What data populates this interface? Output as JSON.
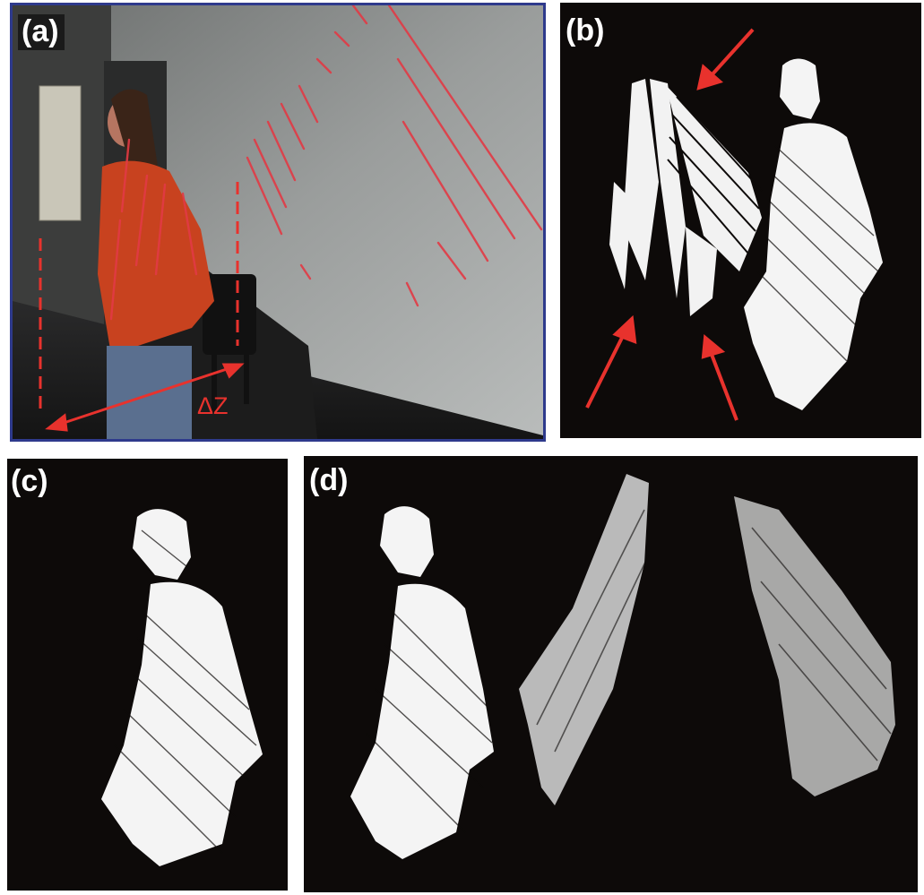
{
  "figure": {
    "panels": [
      {
        "id": "a",
        "label": "(a)"
      },
      {
        "id": "b",
        "label": "(b)"
      },
      {
        "id": "c",
        "label": "(c)"
      },
      {
        "id": "d",
        "label": "(d)"
      }
    ],
    "annotations": {
      "delta_z": "ΔZ"
    },
    "colors": {
      "annotation_red": "#e8322d",
      "frame_blue": "#2e3a8c",
      "panel_background": "#0d0a09",
      "point_cloud": "#ffffff"
    }
  }
}
